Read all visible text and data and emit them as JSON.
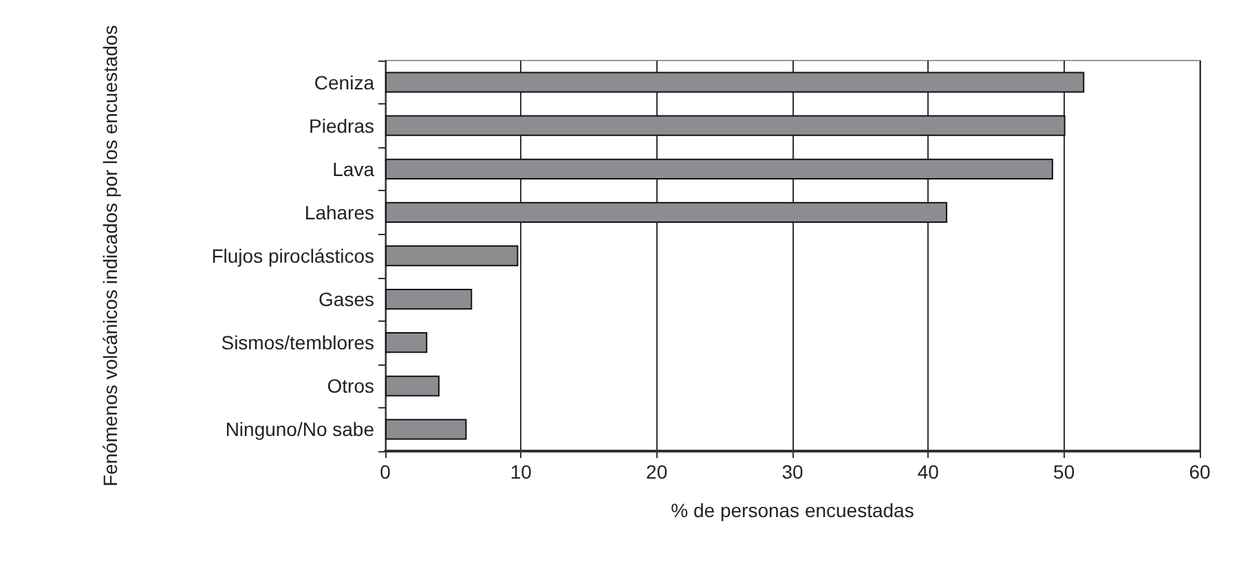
{
  "chart_data": {
    "type": "bar",
    "orientation": "horizontal",
    "xlabel": "% de personas encuestadas",
    "ylabel": "Fenómenos volcánicos indicados por los encuestados",
    "categories": [
      "Ceniza",
      "Piedras",
      "Lava",
      "Lahares",
      "Flujos piroclásticos",
      "Gases",
      "Sismos/temblores",
      "Otros",
      "Ninguno/No sabe"
    ],
    "values": [
      51.5,
      50.1,
      49.2,
      41.4,
      9.8,
      6.4,
      3.1,
      4.0,
      6.0
    ],
    "color": "#8c8d91",
    "xlim": [
      0,
      60
    ],
    "xticks": [
      0,
      10,
      20,
      30,
      40,
      50,
      60
    ],
    "grid": "x"
  }
}
